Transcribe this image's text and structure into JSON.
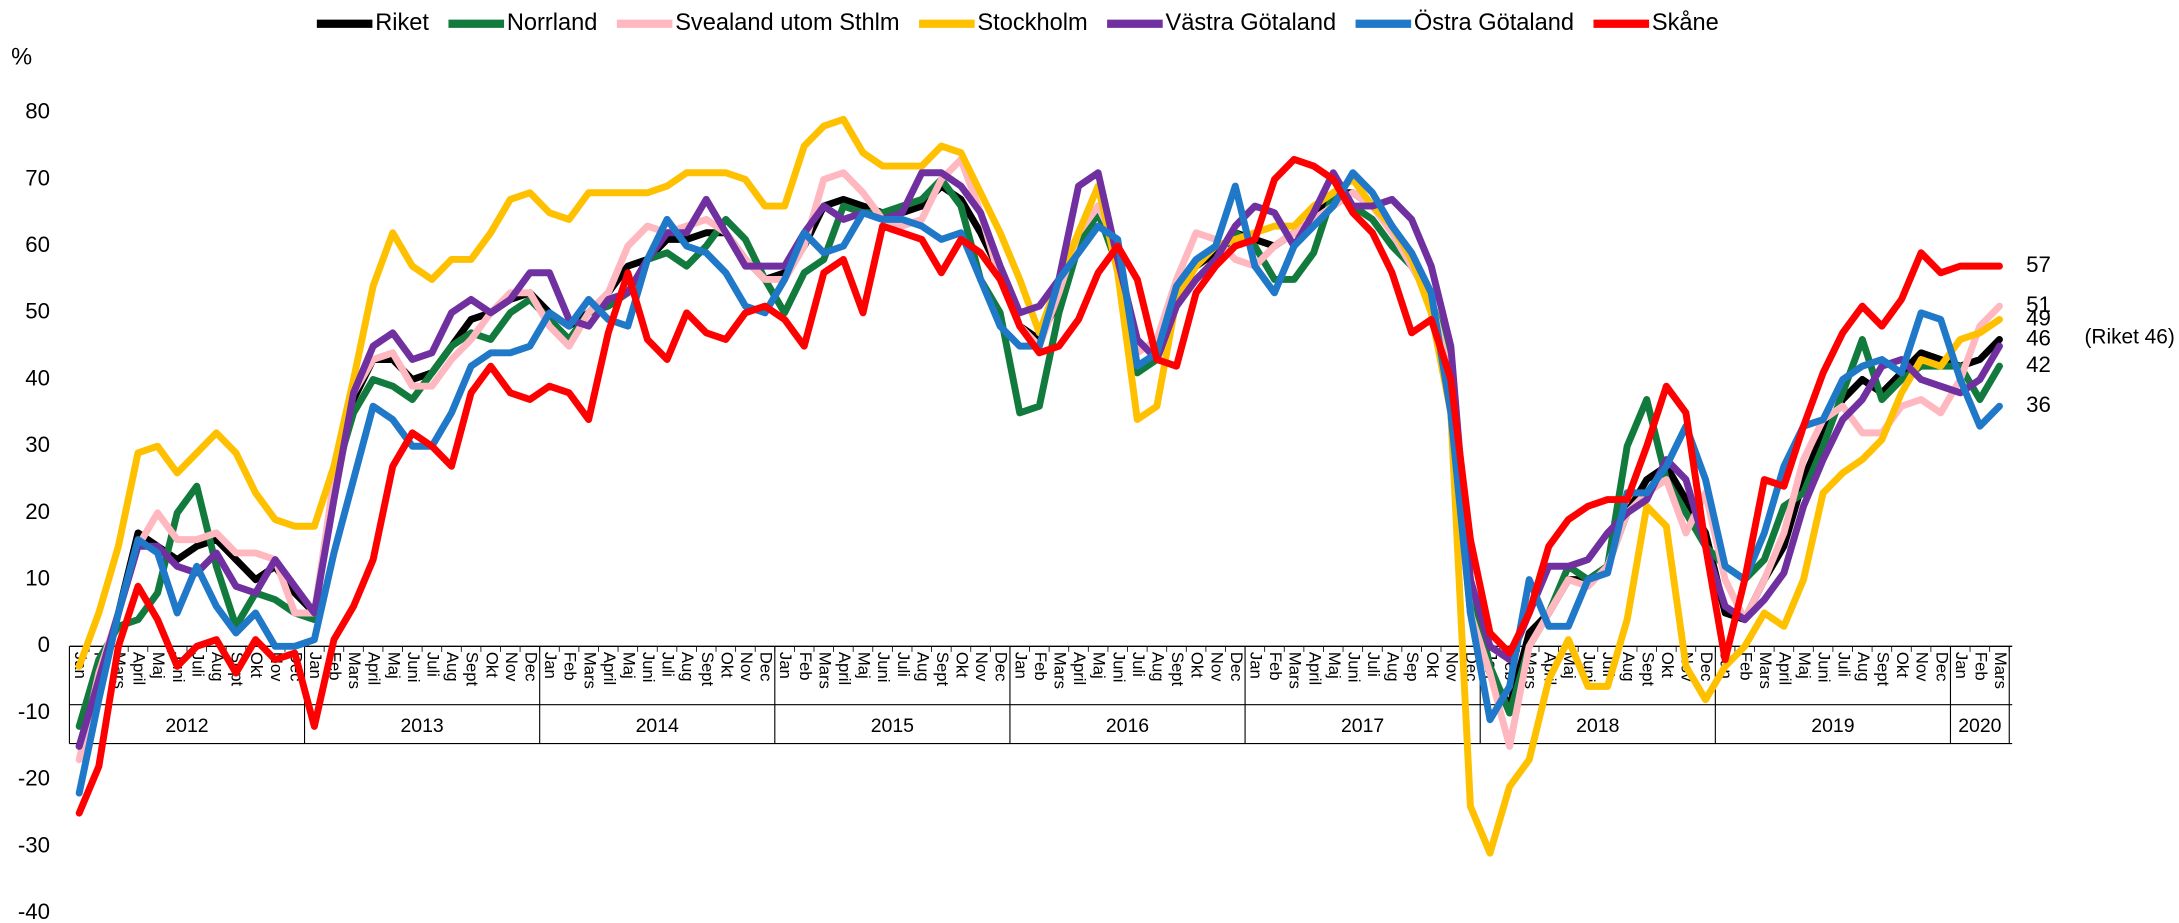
{
  "chart_data": {
    "type": "line",
    "y_label": "%",
    "annotation": "(Riket 46)",
    "categories": [
      "Jan",
      "Feb",
      "Mars",
      "April",
      "Maj",
      "Juni",
      "Juli",
      "Aug",
      "Sept",
      "Okt",
      "Nov",
      "Dec",
      "Jan",
      "Feb",
      "Mars",
      "April",
      "Maj",
      "Juni",
      "Juli",
      "Aug",
      "Sept",
      "Okt",
      "Nov",
      "Dec",
      "Jan",
      "Feb",
      "Mars",
      "April",
      "Maj",
      "Juni",
      "Juli",
      "Aug",
      "Sept",
      "Okt",
      "Nov",
      "Dec",
      "Jan",
      "Feb",
      "Mars",
      "April",
      "Maj",
      "Juni",
      "Juli",
      "Aug",
      "Sept",
      "Okt",
      "Nov",
      "Dec",
      "Jan",
      "Feb",
      "Mars",
      "April",
      "Maj",
      "Juni",
      "Juli",
      "Aug",
      "Sept",
      "Okt",
      "Nov",
      "Dec",
      "Jan",
      "Feb",
      "Mars",
      "April",
      "Maj",
      "Juni",
      "Juli",
      "Aug",
      "Sep",
      "Okt",
      "Nov",
      "Dec",
      "Jan",
      "Feb",
      "Mars",
      "April",
      "Maj",
      "Juni",
      "Juli",
      "Aug",
      "Sept",
      "Okt",
      "Nov",
      "Dec",
      "Jan",
      "Feb",
      "Mars",
      "April",
      "Maj",
      "Juni",
      "Juli",
      "Aug",
      "Sept",
      "Okt",
      "Nov",
      "Dec",
      "Jan",
      "Feb",
      "Mars"
    ],
    "years": [
      "2012",
      "2013",
      "2014",
      "2015",
      "2016",
      "2017",
      "2018",
      "2019",
      "2020"
    ],
    "ylim": [
      -40,
      80
    ],
    "yticks": [
      -40,
      -30,
      -20,
      -10,
      0,
      10,
      20,
      30,
      40,
      50,
      60,
      70,
      80
    ],
    "grid": false,
    "legend": "top",
    "series": [
      {
        "name": "Riket",
        "color": "#000000",
        "end_label": true,
        "values": [
          -15,
          -5,
          5,
          17,
          15,
          13,
          15,
          16,
          13,
          10,
          12,
          8,
          5,
          23,
          37,
          43,
          43,
          40,
          41,
          45,
          49,
          50,
          52,
          53,
          50,
          48,
          50,
          53,
          57,
          58,
          61,
          61,
          62,
          62,
          58,
          55,
          56,
          60,
          66,
          67,
          66,
          65,
          65,
          66,
          69,
          67,
          62,
          56,
          48,
          46,
          52,
          61,
          66,
          58,
          42,
          43,
          54,
          57,
          59,
          62,
          61,
          60,
          62,
          64,
          68,
          68,
          66,
          63,
          58,
          52,
          38,
          5,
          -4,
          -9,
          2,
          5,
          10,
          10,
          12,
          20,
          25,
          27,
          22,
          17,
          5,
          4,
          10,
          15,
          25,
          32,
          37,
          40,
          38,
          41,
          44,
          43,
          42,
          43,
          46
        ]
      },
      {
        "name": "Norrland",
        "color": "#127a3c",
        "end_label": true,
        "values": [
          -12,
          -2,
          3,
          4,
          8,
          20,
          24,
          12,
          3,
          8,
          7,
          5,
          4,
          25,
          35,
          40,
          39,
          37,
          41,
          45,
          47,
          46,
          50,
          52,
          49,
          46,
          50,
          51,
          53,
          58,
          59,
          57,
          60,
          64,
          61,
          55,
          50,
          56,
          58,
          66,
          65,
          65,
          66,
          67,
          70,
          66,
          55,
          50,
          35,
          36,
          50,
          60,
          65,
          57,
          41,
          43,
          54,
          55,
          58,
          62,
          60,
          55,
          55,
          59,
          68,
          66,
          64,
          60,
          57,
          52,
          42,
          10,
          -3,
          -10,
          0,
          5,
          12,
          10,
          12,
          30,
          37,
          25,
          20,
          15,
          12,
          10,
          13,
          21,
          23,
          30,
          38,
          46,
          37,
          40,
          42,
          42,
          42,
          37,
          42
        ]
      },
      {
        "name": "Svealand utom Sthlm",
        "color": "#ffb8c0",
        "end_label": true,
        "values": [
          -17,
          -4,
          5,
          15,
          20,
          16,
          16,
          17,
          14,
          14,
          13,
          5,
          5,
          25,
          38,
          43,
          44,
          39,
          39,
          43,
          46,
          50,
          53,
          53,
          48,
          45,
          50,
          53,
          60,
          63,
          62,
          63,
          64,
          62,
          58,
          55,
          55,
          60,
          70,
          71,
          68,
          64,
          63,
          64,
          70,
          73,
          65,
          55,
          48,
          45,
          53,
          62,
          66,
          60,
          44,
          46,
          55,
          62,
          61,
          58,
          57,
          60,
          62,
          64,
          66,
          68,
          66,
          62,
          57,
          52,
          40,
          5,
          -4,
          -15,
          0,
          5,
          10,
          9,
          12,
          20,
          23,
          25,
          17,
          23,
          10,
          4,
          10,
          17,
          28,
          34,
          36,
          32,
          32,
          36,
          37,
          35,
          40,
          48,
          51
        ]
      },
      {
        "name": "Stockholm",
        "color": "#ffc000",
        "end_label": true,
        "values": [
          -3,
          5,
          15,
          29,
          30,
          26,
          29,
          32,
          29,
          23,
          19,
          18,
          18,
          27,
          40,
          54,
          62,
          57,
          55,
          58,
          58,
          62,
          67,
          68,
          65,
          64,
          68,
          68,
          68,
          68,
          69,
          71,
          71,
          71,
          70,
          66,
          66,
          75,
          78,
          79,
          74,
          72,
          72,
          72,
          75,
          74,
          68,
          62,
          55,
          47,
          55,
          62,
          69,
          56,
          34,
          36,
          52,
          57,
          60,
          61,
          62,
          63,
          63,
          66,
          68,
          70,
          66,
          63,
          58,
          50,
          35,
          -24,
          -31,
          -21,
          -17,
          -5,
          1,
          -6,
          -6,
          4,
          21,
          18,
          -3,
          -8,
          -3,
          0,
          5,
          3,
          10,
          23,
          26,
          28,
          31,
          38,
          43,
          42,
          46,
          47,
          49
        ]
      },
      {
        "name": "Västra Götaland",
        "color": "#7030a0",
        "end_label": false,
        "values": [
          -15,
          -5,
          5,
          15,
          15,
          12,
          11,
          14,
          9,
          8,
          13,
          9,
          5,
          22,
          38,
          45,
          47,
          43,
          44,
          50,
          52,
          50,
          52,
          56,
          56,
          49,
          48,
          52,
          53,
          58,
          62,
          62,
          67,
          62,
          57,
          57,
          57,
          62,
          66,
          64,
          65,
          64,
          65,
          71,
          71,
          69,
          65,
          57,
          50,
          51,
          55,
          69,
          71,
          58,
          46,
          43,
          51,
          55,
          58,
          63,
          66,
          65,
          60,
          65,
          71,
          66,
          66,
          67,
          64,
          57,
          45,
          10,
          0,
          -2,
          5,
          12,
          12,
          13,
          17,
          20,
          22,
          28,
          25,
          15,
          6,
          4,
          7,
          11,
          21,
          28,
          34,
          37,
          42,
          43,
          40,
          39,
          38,
          40,
          45
        ]
      },
      {
        "name": "Östra Götaland",
        "color": "#1f78c8",
        "end_label": true,
        "values": [
          -22,
          -8,
          5,
          16,
          14,
          5,
          12,
          6,
          2,
          5,
          0,
          0,
          1,
          14,
          25,
          36,
          34,
          30,
          30,
          35,
          42,
          44,
          44,
          45,
          50,
          48,
          52,
          49,
          48,
          58,
          64,
          60,
          59,
          56,
          51,
          50,
          55,
          62,
          59,
          60,
          65,
          64,
          64,
          63,
          61,
          62,
          55,
          48,
          45,
          45,
          55,
          59,
          63,
          61,
          42,
          44,
          54,
          58,
          60,
          69,
          57,
          53,
          60,
          63,
          66,
          71,
          68,
          63,
          59,
          53,
          35,
          5,
          -11,
          -6,
          10,
          3,
          3,
          10,
          11,
          23,
          23,
          27,
          33,
          25,
          12,
          10,
          17,
          27,
          33,
          34,
          40,
          42,
          43,
          41,
          50,
          49,
          40,
          33,
          36
        ]
      },
      {
        "name": "Skåne",
        "color": "#ff0000",
        "end_label": true,
        "values": [
          -25,
          -18,
          0,
          9,
          4,
          -3,
          0,
          1,
          -4,
          1,
          -2,
          -1,
          -12,
          1,
          6,
          13,
          27,
          32,
          30,
          27,
          38,
          42,
          38,
          37,
          39,
          38,
          34,
          47,
          56,
          46,
          43,
          50,
          47,
          46,
          50,
          51,
          49,
          45,
          56,
          58,
          50,
          63,
          62,
          61,
          56,
          61,
          59,
          55,
          48,
          44,
          45,
          49,
          56,
          60,
          55,
          43,
          42,
          53,
          57,
          60,
          61,
          70,
          73,
          72,
          70,
          65,
          62,
          56,
          47,
          49,
          40,
          16,
          2,
          -1,
          5,
          15,
          19,
          21,
          22,
          22,
          30,
          39,
          35,
          15,
          -2,
          10,
          25,
          24,
          33,
          41,
          47,
          51,
          48,
          52,
          59,
          56,
          57,
          57,
          57
        ]
      }
    ]
  }
}
